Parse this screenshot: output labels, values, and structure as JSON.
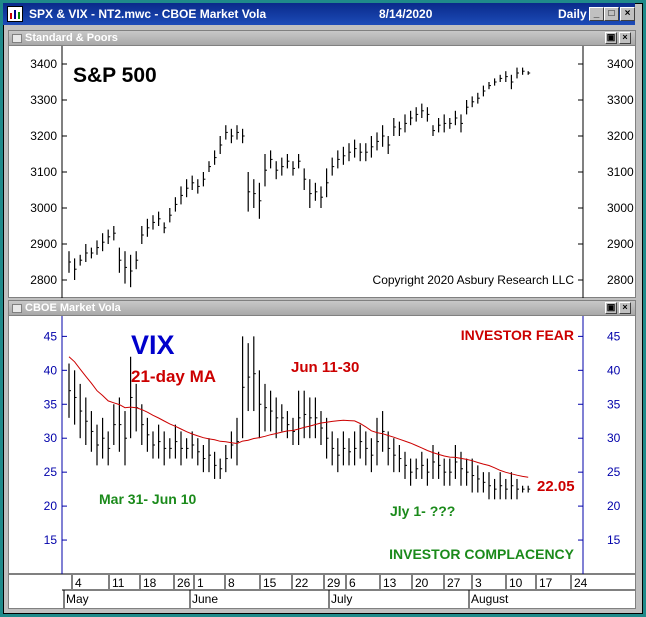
{
  "window": {
    "title": "SPX & VIX - NT2.mwc - CBOE Market Vola",
    "date": "8/14/2020",
    "period": "Daily",
    "btn_min": "_",
    "btn_max": "□",
    "btn_close": "×"
  },
  "top_panel": {
    "title": "Standard & Poors",
    "label": "S&P 500",
    "copyright": "Copyright 2020 Asbury Research LLC",
    "btn_restore": "▣",
    "btn_close": "×"
  },
  "bottom_panel": {
    "title": "CBOE Market Vola",
    "label": "VIX",
    "ma_label": "21-day MA",
    "ann_jun": "Jun 11-30",
    "ann_fear": "INVESTOR FEAR",
    "ann_mar": "Mar 31- Jun 10",
    "ann_jly": "Jly 1- ???",
    "ann_complacency": "INVESTOR COMPLACENCY",
    "last_value": "22.05",
    "btn_restore": "▣",
    "btn_close": "×"
  },
  "colors": {
    "vix_label": "#0000cc",
    "ma_line": "#cc0000",
    "fear_text": "#cc0000",
    "complacency_text": "#1a8a1a",
    "bars": "#000000",
    "vix_axis": "#0000aa"
  },
  "chart_data": [
    {
      "type": "ohlc",
      "title": "S&P 500",
      "ylim": [
        2750,
        3450
      ],
      "yticks": [
        2800,
        2900,
        3000,
        3100,
        3200,
        3300,
        3400
      ],
      "values": [
        [
          2880,
          2820
        ],
        [
          2860,
          2800
        ],
        [
          2870,
          2840
        ],
        [
          2900,
          2850
        ],
        [
          2890,
          2860
        ],
        [
          2910,
          2870
        ],
        [
          2930,
          2880
        ],
        [
          2940,
          2900
        ],
        [
          2950,
          2910
        ],
        [
          2890,
          2820
        ],
        [
          2880,
          2790
        ],
        [
          2870,
          2780
        ],
        [
          2880,
          2830
        ],
        [
          2950,
          2900
        ],
        [
          2970,
          2920
        ],
        [
          2980,
          2940
        ],
        [
          2990,
          2950
        ],
        [
          2960,
          2930
        ],
        [
          3000,
          2960
        ],
        [
          3030,
          2990
        ],
        [
          3060,
          3010
        ],
        [
          3080,
          3030
        ],
        [
          3090,
          3050
        ],
        [
          3080,
          3040
        ],
        [
          3100,
          3060
        ],
        [
          3130,
          3100
        ],
        [
          3160,
          3120
        ],
        [
          3200,
          3150
        ],
        [
          3230,
          3190
        ],
        [
          3220,
          3180
        ],
        [
          3230,
          3190
        ],
        [
          3220,
          3180
        ],
        [
          3100,
          2990
        ],
        [
          3080,
          3000
        ],
        [
          3070,
          2970
        ],
        [
          3150,
          3060
        ],
        [
          3160,
          3110
        ],
        [
          3130,
          3080
        ],
        [
          3140,
          3090
        ],
        [
          3150,
          3110
        ],
        [
          3130,
          3090
        ],
        [
          3150,
          3110
        ],
        [
          3110,
          3050
        ],
        [
          3080,
          3000
        ],
        [
          3070,
          3020
        ],
        [
          3060,
          3000
        ],
        [
          3110,
          3030
        ],
        [
          3140,
          3090
        ],
        [
          3160,
          3110
        ],
        [
          3170,
          3120
        ],
        [
          3180,
          3130
        ],
        [
          3190,
          3140
        ],
        [
          3180,
          3130
        ],
        [
          3180,
          3130
        ],
        [
          3200,
          3140
        ],
        [
          3210,
          3160
        ],
        [
          3230,
          3170
        ],
        [
          3200,
          3150
        ],
        [
          3250,
          3200
        ],
        [
          3240,
          3200
        ],
        [
          3260,
          3210
        ],
        [
          3270,
          3230
        ],
        [
          3280,
          3240
        ],
        [
          3290,
          3250
        ],
        [
          3280,
          3240
        ],
        [
          3230,
          3200
        ],
        [
          3250,
          3210
        ],
        [
          3260,
          3210
        ],
        [
          3250,
          3220
        ],
        [
          3270,
          3230
        ],
        [
          3260,
          3210
        ],
        [
          3300,
          3260
        ],
        [
          3310,
          3280
        ],
        [
          3320,
          3290
        ],
        [
          3340,
          3310
        ],
        [
          3350,
          3330
        ],
        [
          3360,
          3340
        ],
        [
          3370,
          3350
        ],
        [
          3380,
          3350
        ],
        [
          3370,
          3330
        ],
        [
          3390,
          3360
        ],
        [
          3390,
          3370
        ],
        [
          3380,
          3370
        ]
      ]
    },
    {
      "type": "ohlc",
      "title": "VIX",
      "ylim": [
        10,
        48
      ],
      "yticks": [
        15,
        20,
        25,
        30,
        35,
        40,
        45
      ],
      "last_value": 22.05,
      "values": [
        [
          41,
          33
        ],
        [
          40,
          32
        ],
        [
          38,
          30
        ],
        [
          36,
          29
        ],
        [
          34,
          28
        ],
        [
          32,
          26
        ],
        [
          33,
          27
        ],
        [
          31,
          26
        ],
        [
          35,
          29
        ],
        [
          36,
          28
        ],
        [
          34,
          26
        ],
        [
          42,
          30
        ],
        [
          38,
          31
        ],
        [
          35,
          29
        ],
        [
          33,
          28
        ],
        [
          31,
          27
        ],
        [
          32,
          27
        ],
        [
          31,
          26
        ],
        [
          30,
          27
        ],
        [
          32,
          27
        ],
        [
          31,
          26
        ],
        [
          30,
          27
        ],
        [
          31,
          27
        ],
        [
          30,
          26
        ],
        [
          29,
          25
        ],
        [
          30,
          25
        ],
        [
          28,
          24
        ],
        [
          27,
          24
        ],
        [
          29,
          25
        ],
        [
          31,
          27
        ],
        [
          33,
          26
        ],
        [
          45,
          30
        ],
        [
          44,
          34
        ],
        [
          45,
          34
        ],
        [
          40,
          30
        ],
        [
          38,
          31
        ],
        [
          37,
          31
        ],
        [
          36,
          30
        ],
        [
          35,
          31
        ],
        [
          34,
          30
        ],
        [
          33,
          29
        ],
        [
          37,
          29
        ],
        [
          37,
          30
        ],
        [
          36,
          30
        ],
        [
          36,
          30
        ],
        [
          34,
          29
        ],
        [
          33,
          27
        ],
        [
          31,
          26
        ],
        [
          30,
          25
        ],
        [
          31,
          26
        ],
        [
          30,
          26
        ],
        [
          31,
          26
        ],
        [
          32,
          27
        ],
        [
          31,
          26
        ],
        [
          30,
          25
        ],
        [
          33,
          26
        ],
        [
          34,
          28
        ],
        [
          31,
          26
        ],
        [
          30,
          25
        ],
        [
          29,
          25
        ],
        [
          28,
          24
        ],
        [
          27,
          23
        ],
        [
          27,
          24
        ],
        [
          28,
          24
        ],
        [
          27,
          23
        ],
        [
          29,
          24
        ],
        [
          28,
          24
        ],
        [
          27,
          23
        ],
        [
          27,
          23
        ],
        [
          29,
          24
        ],
        [
          28,
          23
        ],
        [
          27,
          23
        ],
        [
          27,
          22
        ],
        [
          26,
          22
        ],
        [
          25,
          22
        ],
        [
          25,
          21
        ],
        [
          24,
          21
        ],
        [
          25,
          21
        ],
        [
          24,
          21
        ],
        [
          25,
          21
        ],
        [
          24,
          21
        ],
        [
          23,
          22
        ],
        [
          23,
          22
        ]
      ]
    }
  ],
  "xaxis": {
    "day_ticks": [
      "4",
      "11",
      "18",
      "26",
      "1",
      "8",
      "15",
      "22",
      "29",
      "6",
      "13",
      "20",
      "27",
      "3",
      "10",
      "17",
      "24"
    ],
    "months": [
      "May",
      "June",
      "July",
      "August"
    ]
  }
}
